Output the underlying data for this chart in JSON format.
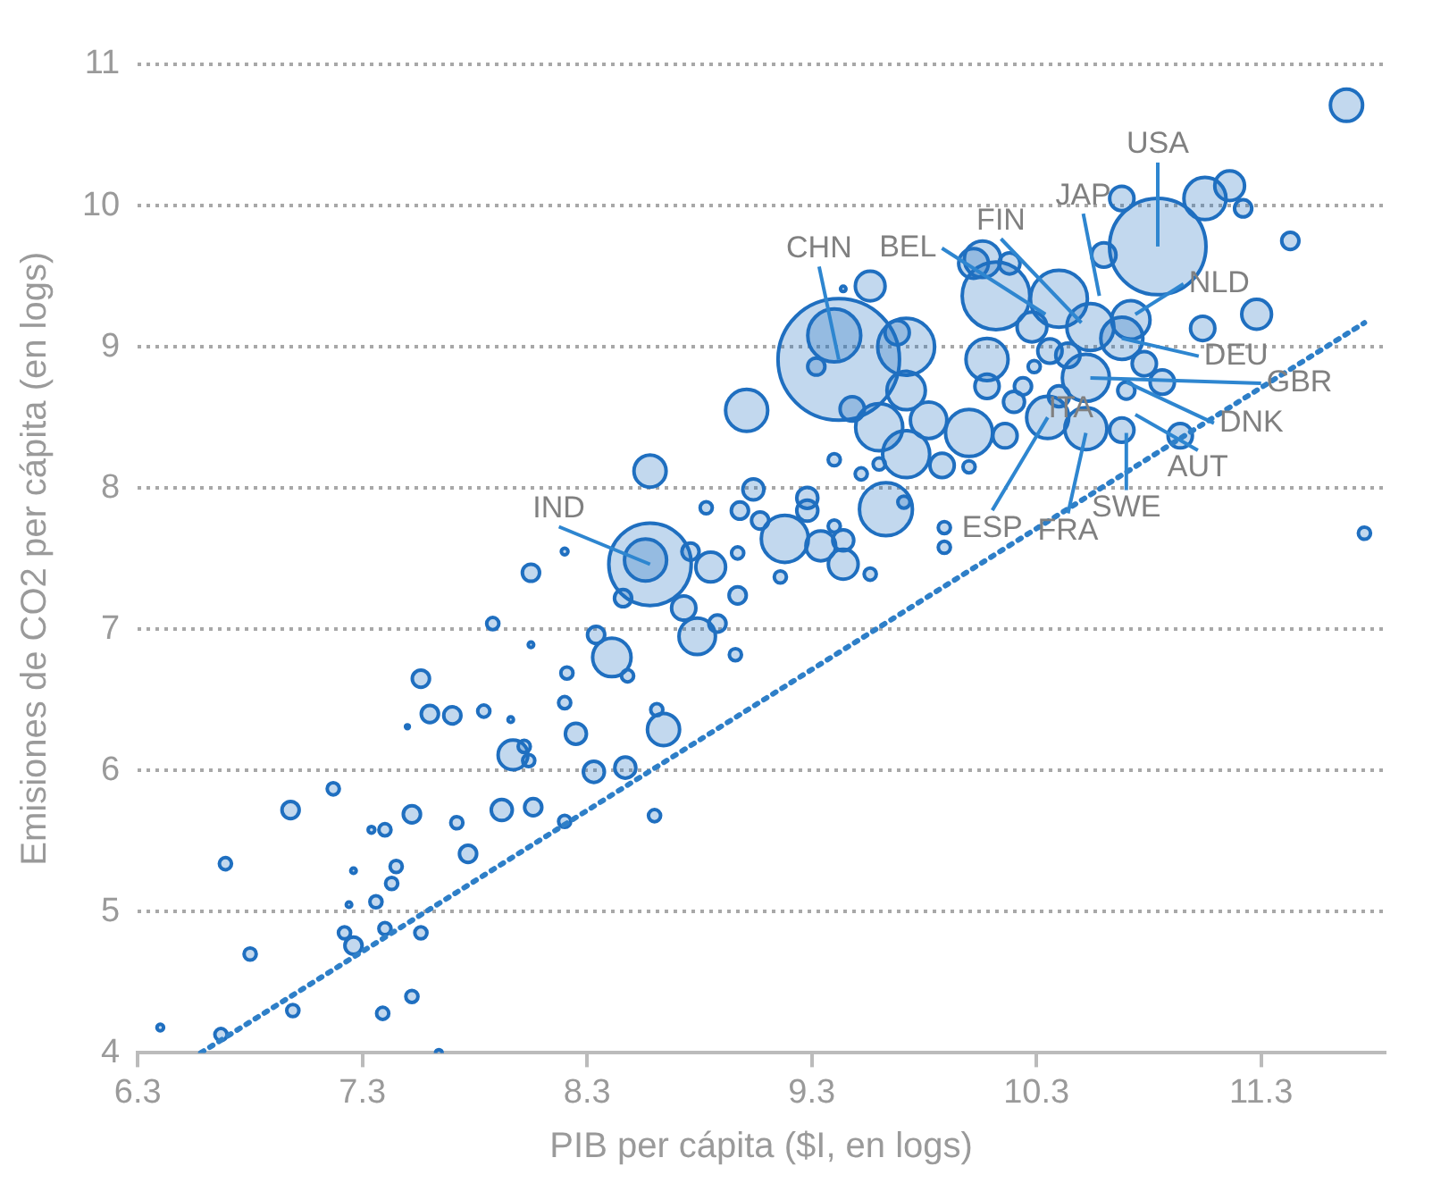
{
  "chart_data": {
    "type": "bubble",
    "xlabel": "PIB per cápita ($I, en logs)",
    "ylabel": "Emisiones de CO2 per cápita (en logs)",
    "xlim": [
      6.3,
      11.85
    ],
    "ylim": [
      4,
      11
    ],
    "xticks": [
      6.3,
      7.3,
      8.3,
      9.3,
      10.3,
      11.3
    ],
    "yticks": [
      4,
      5,
      6,
      7,
      8,
      9,
      10,
      11
    ],
    "grid": "y",
    "legend": false,
    "series": [
      {
        "type": "bubble",
        "color": "#1f6fc0",
        "x": [
          8.58,
          8.58,
          8.56,
          8.83,
          8.98,
          8.2,
          8.05,
          8.85,
          8.97,
          8.76,
          8.46,
          8.73,
          8.79,
          8.88,
          8.97,
          8.96,
          7.88,
          8.05,
          8.34,
          8.41,
          8.48,
          7.56,
          8.21,
          8.2,
          7.6,
          7.7,
          7.84,
          8.61,
          8.64,
          8.25,
          7.97,
          8.02,
          8.04,
          7.5,
          7.96,
          8.33,
          8.47,
          6.98,
          7.17,
          7.92,
          8.06,
          8.2,
          7.52,
          7.72,
          7.4,
          7.34,
          8.6,
          7.77,
          6.69,
          7.45,
          7.43,
          7.26,
          7.24,
          7.36,
          7.22,
          7.26,
          7.4,
          7.56,
          6.8,
          6.99,
          7.39,
          7.52,
          6.4,
          6.67,
          7.64,
          9.42,
          9.4,
          9.56,
          9.44,
          9.32,
          9.68,
          9.72,
          9.72,
          9.01,
          9.48,
          9.6,
          9.82,
          9.72,
          10.0,
          10.16,
          9.88,
          10.0,
          9.4,
          9.52,
          9.6,
          9.04,
          9.28,
          9.28,
          9.63,
          9.71,
          9.07,
          9.18,
          9.34,
          9.44,
          9.44,
          9.56,
          9.16,
          9.89,
          9.89,
          9.4,
          10.06,
          10.12,
          10.4,
          10.08,
          10.28,
          10.08,
          10.24,
          10.2,
          10.36,
          10.44,
          10.29,
          10.35,
          10.4,
          11.68,
          10.84,
          10.68,
          11.05,
          11.16,
          11.22,
          11.43,
          10.6,
          10.02,
          10.18,
          10.54,
          10.72,
          11.04,
          11.28,
          10.68,
          10.78,
          10.86,
          10.52,
          10.7,
          10.52,
          10.68,
          10.94,
          11.76
        ],
        "values": [
          8.12,
          7.46,
          7.49,
          7.86,
          7.84,
          7.55,
          7.4,
          7.44,
          7.54,
          7.55,
          7.22,
          7.15,
          6.95,
          7.04,
          7.24,
          6.82,
          7.04,
          6.89,
          6.96,
          6.8,
          6.67,
          6.65,
          6.69,
          6.48,
          6.4,
          6.39,
          6.42,
          6.43,
          6.29,
          6.26,
          6.11,
          6.17,
          6.07,
          6.31,
          6.36,
          5.99,
          6.02,
          5.72,
          5.87,
          5.72,
          5.74,
          5.64,
          5.69,
          5.63,
          5.58,
          5.58,
          5.68,
          5.41,
          5.34,
          5.32,
          5.2,
          5.29,
          5.05,
          5.07,
          4.85,
          4.76,
          4.88,
          4.85,
          4.7,
          4.3,
          4.28,
          4.4,
          4.18,
          4.13,
          4.0,
          8.91,
          9.08,
          9.43,
          9.41,
          8.86,
          9.1,
          9.0,
          8.69,
          8.55,
          8.56,
          8.43,
          8.48,
          8.24,
          8.39,
          8.37,
          8.16,
          8.15,
          8.2,
          8.1,
          8.17,
          7.99,
          7.93,
          7.84,
          7.85,
          7.9,
          7.77,
          7.64,
          7.59,
          7.46,
          7.63,
          7.39,
          7.37,
          7.72,
          7.58,
          7.73,
          9.62,
          9.36,
          9.34,
          8.91,
          9.14,
          8.72,
          8.72,
          8.61,
          8.97,
          8.94,
          8.86,
          8.5,
          8.65,
          10.71,
          9.71,
          10.05,
          10.05,
          10.14,
          9.98,
          9.75,
          9.65,
          9.59,
          9.59,
          9.14,
          9.19,
          9.13,
          9.23,
          9.06,
          8.88,
          8.75,
          8.78,
          8.69,
          8.42,
          8.41,
          8.37,
          7.68
        ],
        "sizes": [
          0.07,
          0.46,
          0.12,
          0.01,
          0.02,
          0.003,
          0.02,
          0.06,
          0.01,
          0.02,
          0.02,
          0.04,
          0.09,
          0.02,
          0.02,
          0.01,
          0.01,
          0.002,
          0.02,
          0.1,
          0.01,
          0.02,
          0.01,
          0.01,
          0.02,
          0.02,
          0.01,
          0.01,
          0.07,
          0.03,
          0.06,
          0.01,
          0.01,
          0.001,
          0.002,
          0.03,
          0.03,
          0.02,
          0.01,
          0.03,
          0.02,
          0.01,
          0.02,
          0.01,
          0.01,
          0.003,
          0.01,
          0.02,
          0.01,
          0.01,
          0.01,
          0.002,
          0.002,
          0.01,
          0.01,
          0.02,
          0.01,
          0.01,
          0.01,
          0.01,
          0.01,
          0.01,
          0.003,
          0.01,
          0.003,
          1,
          0.19,
          0.06,
          0.002,
          0.02,
          0.04,
          0.22,
          0.1,
          0.12,
          0.04,
          0.15,
          0.09,
          0.15,
          0.15,
          0.04,
          0.04,
          0.01,
          0.01,
          0.01,
          0.01,
          0.03,
          0.03,
          0.03,
          0.19,
          0.01,
          0.02,
          0.15,
          0.06,
          0.06,
          0.03,
          0.01,
          0.01,
          0.01,
          0.01,
          0.01,
          0.09,
          0.31,
          0.22,
          0.12,
          0.06,
          0.04,
          0.02,
          0.03,
          0.04,
          0.04,
          0.01,
          0.12,
          0.03,
          0.07,
          0.63,
          0.04,
          0.12,
          0.06,
          0.02,
          0.02,
          0.04,
          0.06,
          0.03,
          0.15,
          0.1,
          0.04,
          0.06,
          0.12,
          0.04,
          0.04,
          0.15,
          0.02,
          0.12,
          0.04,
          0.04,
          0.01
        ]
      },
      {
        "type": "line",
        "color": "#2e7fc8",
        "line_style": "dotted",
        "marker": "none",
        "x": [
          6.58,
          11.76
        ],
        "values": [
          4.0,
          9.17
        ]
      }
    ],
    "annotations": [
      {
        "text": "CHN",
        "x": 9.42,
        "y": 8.91
      },
      {
        "text": "IND",
        "x": 8.58,
        "y": 7.46
      },
      {
        "text": "BEL",
        "x": 10.34,
        "y": 9.23
      },
      {
        "text": "FIN",
        "x": 10.5,
        "y": 9.17
      },
      {
        "text": "JAP",
        "x": 10.58,
        "y": 9.36
      },
      {
        "text": "USA",
        "x": 10.84,
        "y": 9.71
      },
      {
        "text": "NLD",
        "x": 10.74,
        "y": 9.23
      },
      {
        "text": "DEU",
        "x": 10.68,
        "y": 9.06
      },
      {
        "text": "GBR",
        "x": 10.54,
        "y": 8.78
      },
      {
        "text": "DNK",
        "x": 10.7,
        "y": 8.75
      },
      {
        "text": "AUT",
        "x": 10.74,
        "y": 8.52
      },
      {
        "text": "SWE",
        "x": 10.7,
        "y": 8.39
      },
      {
        "text": "FRA",
        "x": 10.52,
        "y": 8.39
      },
      {
        "text": "ESP",
        "x": 10.35,
        "y": 8.5
      },
      {
        "text": "ITA",
        "x": 10.35,
        "y": 8.5
      }
    ]
  }
}
